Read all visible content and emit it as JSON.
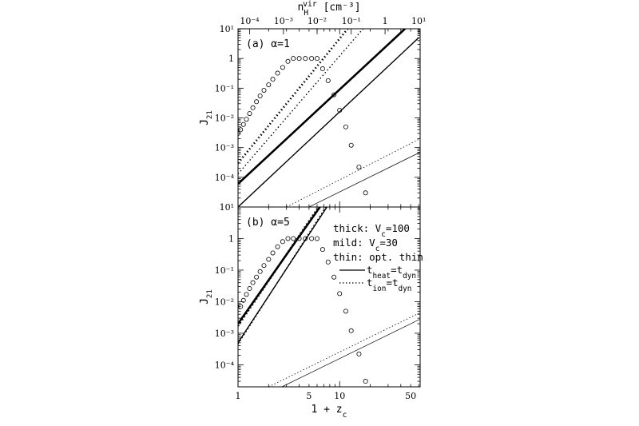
{
  "chart_data": [
    {
      "panel_label": "(a)  α=1",
      "type": "line",
      "xscale": "log",
      "yscale": "log",
      "xlabel": "",
      "ylabel": "J₂₁",
      "xlim": [
        1,
        62
      ],
      "ylim": [
        1e-05,
        10
      ],
      "top_axis": {
        "label": "n_H^vir [cm⁻³]",
        "ticks": [
          {
            "label": "10⁻⁴",
            "x": 1.3
          },
          {
            "label": "10⁻³",
            "x": 2.8
          },
          {
            "label": "10⁻²",
            "x": 6.0
          },
          {
            "label": "10⁻¹",
            "x": 13.0
          },
          {
            "label": "1",
            "x": 28.0
          },
          {
            "label": "10¹",
            "x": 60.0
          }
        ]
      },
      "yticks": [
        {
          "label": "10¹",
          "y": 10
        },
        {
          "label": "1",
          "y": 1
        },
        {
          "label": "10⁻¹",
          "y": 0.1
        },
        {
          "label": "10⁻²",
          "y": 0.01
        },
        {
          "label": "10⁻³",
          "y": 0.001
        },
        {
          "label": "10⁻⁴",
          "y": 0.0001
        }
      ],
      "series": [
        {
          "style": "thick-solid",
          "x": [
            1,
            44
          ],
          "y": [
            6e-05,
            10
          ]
        },
        {
          "style": "mid-solid",
          "x": [
            1,
            60
          ],
          "y": [
            1e-05,
            5
          ]
        },
        {
          "style": "thin-solid",
          "x": [
            5,
            62
          ],
          "y": [
            1e-05,
            0.0007
          ]
        },
        {
          "style": "thick-dotted",
          "x": [
            1,
            12
          ],
          "y": [
            0.0003,
            10
          ]
        },
        {
          "style": "mid-dotted",
          "x": [
            1,
            17
          ],
          "y": [
            0.00013,
            10
          ]
        },
        {
          "style": "thin-dotted",
          "x": [
            3,
            62
          ],
          "y": [
            1e-05,
            0.002
          ]
        },
        {
          "style": "circles",
          "x": [
            1,
            1.06,
            1.13,
            1.21,
            1.3,
            1.4,
            1.52,
            1.65,
            1.8,
            2,
            2.2,
            2.45,
            2.75,
            3.1,
            3.5,
            4,
            4.6,
            5.3,
            6,
            6.8,
            7.7,
            8.8,
            10,
            11.5,
            13,
            15.5,
            18
          ],
          "y": [
            0.003,
            0.004,
            0.006,
            0.009,
            0.014,
            0.022,
            0.035,
            0.055,
            0.085,
            0.13,
            0.2,
            0.32,
            0.5,
            0.8,
            1,
            1,
            1,
            1,
            1,
            0.45,
            0.18,
            0.06,
            0.018,
            0.005,
            0.0012,
            0.00022,
            3e-05
          ]
        }
      ]
    },
    {
      "panel_label": "(b)  α=5",
      "type": "line",
      "xscale": "log",
      "yscale": "log",
      "xlabel": "1 + z_c",
      "ylabel": "J₂₁",
      "xlim": [
        1,
        62
      ],
      "ylim": [
        2e-05,
        10
      ],
      "xticks": [
        {
          "label": "1",
          "x": 1
        },
        {
          "label": "5",
          "x": 5
        },
        {
          "label": "10",
          "x": 10
        },
        {
          "label": "50",
          "x": 50
        }
      ],
      "yticks": [
        {
          "label": "10¹",
          "y": 10
        },
        {
          "label": "1",
          "y": 1
        },
        {
          "label": "10⁻¹",
          "y": 0.1
        },
        {
          "label": "10⁻²",
          "y": 0.01
        },
        {
          "label": "10⁻³",
          "y": 0.001
        },
        {
          "label": "10⁻⁴",
          "y": 0.0001
        }
      ],
      "series": [
        {
          "style": "thick-solid",
          "x": [
            1,
            6.4
          ],
          "y": [
            0.002,
            10
          ]
        },
        {
          "style": "thick-dotted",
          "x": [
            1,
            6.2
          ],
          "y": [
            0.0017,
            10
          ]
        },
        {
          "style": "mid-solid",
          "x": [
            1,
            7.5
          ],
          "y": [
            0.0005,
            10
          ]
        },
        {
          "style": "mid-dotted",
          "x": [
            1,
            7.3
          ],
          "y": [
            0.00045,
            10
          ]
        },
        {
          "style": "thin-solid",
          "x": [
            2.7,
            62
          ],
          "y": [
            2e-05,
            0.0028
          ]
        },
        {
          "style": "thin-dotted",
          "x": [
            2.0,
            62
          ],
          "y": [
            2e-05,
            0.0045
          ]
        },
        {
          "style": "circles",
          "x": [
            1.06,
            1.13,
            1.21,
            1.3,
            1.4,
            1.52,
            1.65,
            1.8,
            2,
            2.2,
            2.45,
            2.75,
            3.1,
            3.5,
            4,
            4.6,
            5.3,
            6,
            6.8,
            7.7,
            8.8,
            10,
            11.5,
            13,
            15.5,
            18
          ],
          "y": [
            0.007,
            0.011,
            0.017,
            0.026,
            0.04,
            0.06,
            0.09,
            0.14,
            0.22,
            0.35,
            0.55,
            0.8,
            1,
            1,
            1,
            1,
            1,
            1,
            0.45,
            0.18,
            0.06,
            0.018,
            0.005,
            0.0012,
            0.00022,
            3e-05
          ]
        }
      ],
      "legend": {
        "placement": "right",
        "lines": [
          "thick: V_c=100",
          "mild:  V_c=30",
          "thin:  opt. thin"
        ],
        "keys": [
          {
            "style": "solid",
            "label": "t_heat=t_dyn"
          },
          {
            "style": "dotted",
            "label": "t_ion=t_dyn"
          }
        ]
      }
    }
  ]
}
